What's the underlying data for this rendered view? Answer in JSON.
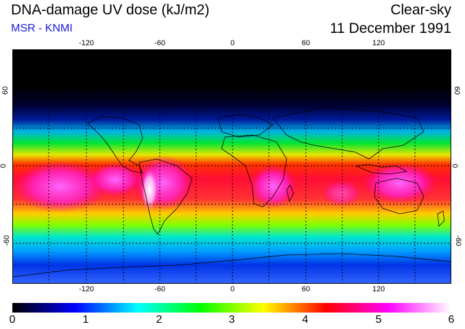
{
  "header": {
    "title": "DNA-damage UV dose (kJ/m2)",
    "subtitle": "MSR - KNMI",
    "sky_condition": "Clear-sky",
    "date": "11 December 1991"
  },
  "map": {
    "lon_ticks_top": [
      "-120",
      "-60",
      "0",
      "60",
      "120"
    ],
    "lon_ticks_bottom": [
      "-120",
      "-60",
      "0",
      "60",
      "120"
    ],
    "lat_ticks_left": [
      "60",
      "0",
      "-60"
    ],
    "lat_ticks_right": [
      "60",
      "0",
      "-60"
    ],
    "grid_style": "dotted",
    "colors": {
      "polar_night": "#000000",
      "low": "#0a1a8c",
      "mid": "#00e600",
      "high": "#ff1a1a",
      "max": "#ffe6ff"
    }
  },
  "colorbar": {
    "ticks": [
      "0",
      "1",
      "2",
      "3",
      "4",
      "5",
      "6"
    ],
    "stops": [
      "#000000",
      "#0000ff",
      "#00ffff",
      "#00ff00",
      "#ffff00",
      "#ff0000",
      "#ff00ff",
      "#ffffff"
    ]
  }
}
